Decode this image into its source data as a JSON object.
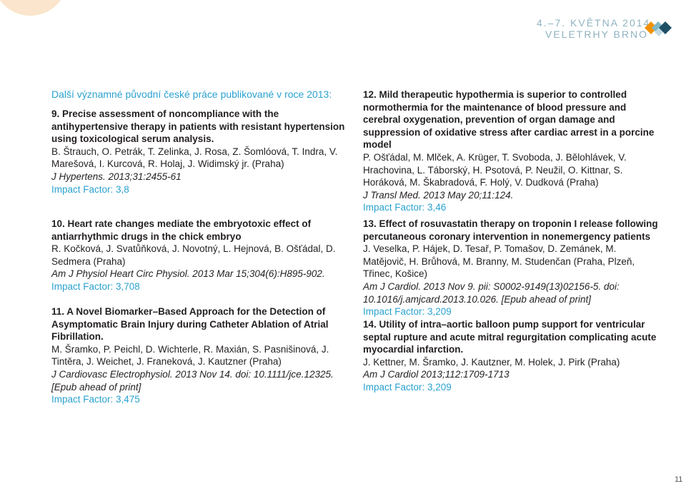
{
  "header": {
    "date": "4.–7. KVĚTNA 2014",
    "place": "VELETRHY BRNO"
  },
  "colors": {
    "accent": "#2aa2d0",
    "header_text": "#8fb3c0",
    "deco": "#fbe5cc"
  },
  "intro": "Další významné původní české práce publikované v roce 2013:",
  "entries": [
    {
      "title": "9. Precise assessment of noncompliance with the antihypertensive therapy in patients with resistant hypertension using toxicological serum analysis.",
      "authors": "B. Štrauch, O. Petrák, T. Zelinka, J. Rosa, Z. Šomlóová, T. Indra, V. Marešová, I. Kurcová, R. Holaj, J. Widimský jr. (Praha)",
      "journal": "J Hypertens. 2013;31:2455-61",
      "impact": "Impact Factor: 3,8"
    },
    {
      "title": "10. Heart rate changes mediate the embryotoxic effect of antiarrhythmic drugs in the chick embryo",
      "authors": "R. Kočková, J. Svatůňková, J. Novotný, L. Hejnová, B. Ošťádal, D. Sedmera (Praha)",
      "journal": "Am J Physiol Heart Circ Physiol. 2013 Mar 15;304(6):H895-902.",
      "impact": "Impact Factor: 3,708"
    },
    {
      "title": "11. A Novel Biomarker–Based Approach for the Detection of Asymptomatic Brain Injury during Catheter Ablation of Atrial Fibrillation.",
      "authors": "M. Šramko, P. Peichl, D. Wichterle, R. Maxián, S. Pasnišinová, J. Tintěra, J. Weichet, J. Franeková, J. Kautzner (Praha)",
      "journal": "J Cardiovasc Electrophysiol. 2013 Nov 14. doi: 10.1111/jce.12325. [Epub ahead of print]",
      "impact": "Impact Factor: 3,475"
    },
    {
      "title": "12. Mild therapeutic hypothermia is superior to controlled normothermia for the maintenance of blood pressure and cerebral oxygenation, prevention of organ damage and suppression of oxidative stress after cardiac arrest in a porcine model",
      "authors": "P. Ošťádal, M. Mlček, A. Krüger, T. Svoboda, J. Bělohlávek, V. Hrachovina, L. Táborský, H. Psotová, P. Neužil, O. Kittnar, S. Horáková, M. Škabradová, F. Holý, V. Dudková (Praha)",
      "journal": "J Transl Med. 2013 May 20;11:124.",
      "impact": "Impact Factor: 3,46"
    },
    {
      "title": "13. Effect of rosuvastatin therapy on troponin I release following percutaneous coronary intervention in nonemergency patients",
      "authors": "J. Veselka, P. Hájek, D. Tesař, P. Tomašov, D. Zemánek, M. Matějovič, H. Brůhová, M. Branny, M. Studenčan (Praha, Plzeň, Třinec, Košice)",
      "journal": "Am J Cardiol. 2013 Nov 9. pii: S0002-9149(13)02156-5. doi: 10.1016/j.amjcard.2013.10.026. [Epub ahead of print]",
      "impact": "Impact Factor: 3,209"
    },
    {
      "title": "14. Utility of intra–aortic balloon pump support for ventricular septal rupture and acute mitral regurgitation complicating acute myocardial infarction.",
      "authors": "J. Kettner, M. Šramko, J. Kautzner, M. Holek, J. Pirk (Praha)",
      "journal": "Am J Cardiol 2013;112:1709-1713",
      "impact": "Impact Factor: 3,209"
    }
  ],
  "page_number": "11"
}
